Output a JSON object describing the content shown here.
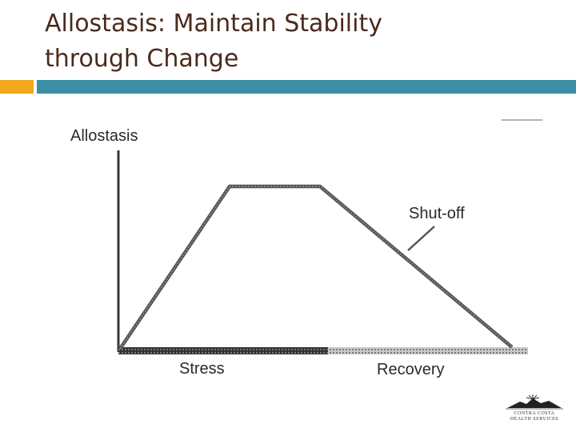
{
  "slide": {
    "title_line1": "Allostasis:  Maintain Stability",
    "title_line2": "through Change"
  },
  "diagram": {
    "y_axis_label": "Allostasis",
    "callout_label": "Shut-off",
    "phase_stress_label": "Stress",
    "phase_recovery_label": "Recovery"
  },
  "colors": {
    "title": "#4a2a1c",
    "accent_orange": "#f0a81c",
    "rule_teal": "#3b8ea5",
    "line_gray": "#555555"
  },
  "logo": {
    "icon": "mountain-sun-logo-icon",
    "text_line1": "CONTRA COSTA",
    "text_line2": "HEALTH SERVICES"
  }
}
